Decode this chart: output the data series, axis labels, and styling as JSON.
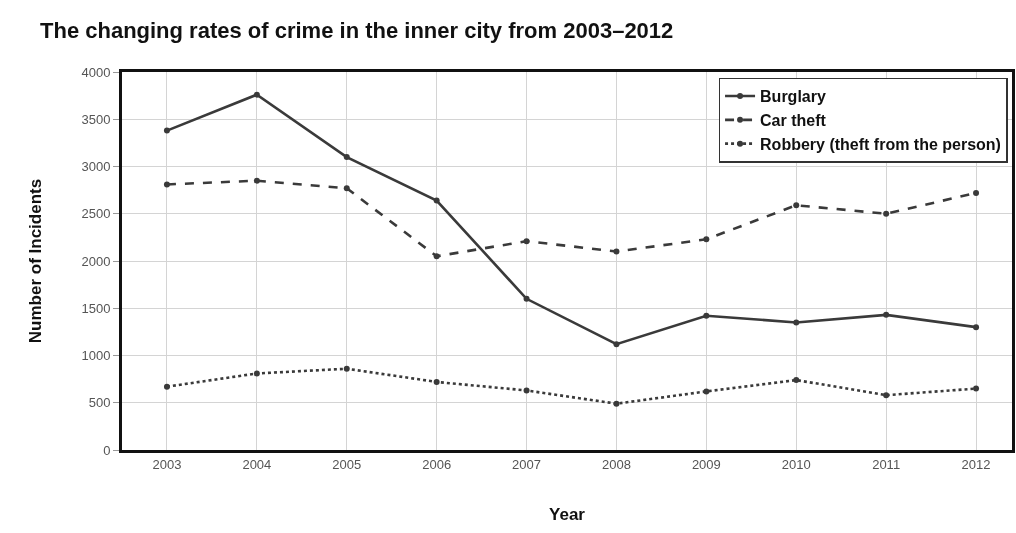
{
  "chart_data": {
    "type": "line",
    "title": "The changing rates of crime in the inner city from 2003–2012",
    "xlabel": "Year",
    "ylabel": "Number of Incidents",
    "x": [
      2003,
      2004,
      2005,
      2006,
      2007,
      2008,
      2009,
      2010,
      2011,
      2012
    ],
    "series": [
      {
        "name": "Burglary",
        "color": "#3a3a3a",
        "line_style": "solid",
        "values": [
          3380,
          3760,
          3100,
          2640,
          1600,
          1120,
          1420,
          1350,
          1430,
          1300
        ]
      },
      {
        "name": "Car theft",
        "color": "#3a3a3a",
        "line_style": "dashed",
        "values": [
          2810,
          2850,
          2770,
          2050,
          2210,
          2100,
          2230,
          2590,
          2500,
          2720
        ]
      },
      {
        "name": "Robbery (theft from the person)",
        "color": "#3a3a3a",
        "line_style": "dotted",
        "values": [
          670,
          810,
          860,
          720,
          630,
          490,
          620,
          740,
          580,
          650
        ]
      }
    ],
    "xlim": [
      2002.5,
      2012.4
    ],
    "xticks": [
      2003,
      2004,
      2005,
      2006,
      2007,
      2008,
      2009,
      2010,
      2011,
      2012
    ],
    "ylim": [
      0,
      4000
    ],
    "yticks": [
      0,
      500,
      1000,
      1500,
      2000,
      2500,
      3000,
      3500,
      4000
    ],
    "grid": true,
    "legend": "top right",
    "marker": "circle"
  }
}
